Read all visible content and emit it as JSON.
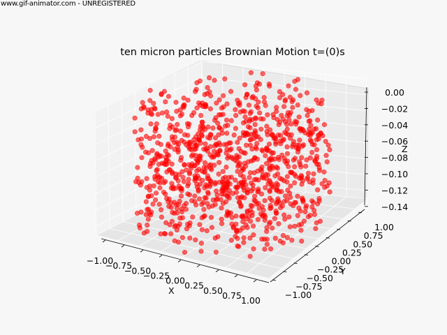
{
  "watermark": "www.gif-animator.com - UNREGISTERED",
  "chart_data": {
    "type": "scatter",
    "projection": "3d",
    "title": "ten micron particles Brownian Motion t=(0)s",
    "xlabel": "X",
    "ylabel": "Y",
    "zlabel": "Z",
    "xlim": [
      -1.0,
      1.0
    ],
    "ylim": [
      -1.0,
      1.0
    ],
    "zlim": [
      -0.15,
      0.0
    ],
    "x_ticks": [
      "−1.00",
      "−0.75",
      "−0.50",
      "−0.25",
      "0.00",
      "0.25",
      "0.50",
      "0.75",
      "1.00"
    ],
    "y_ticks": [
      "−1.00",
      "−0.75",
      "−0.50",
      "−0.25",
      "0.00",
      "0.25",
      "0.50",
      "0.75",
      "1.00"
    ],
    "z_ticks": [
      "0.00",
      "−0.02",
      "−0.04",
      "−0.06",
      "−0.08",
      "−0.10",
      "−0.12",
      "−0.14"
    ],
    "grid": true,
    "marker_color": "#ff0000",
    "marker_alpha": 0.6,
    "n_points": 1000,
    "distribution": "uniform random in the unit disk (x,y) with z uniform in [-0.15, 0]"
  }
}
